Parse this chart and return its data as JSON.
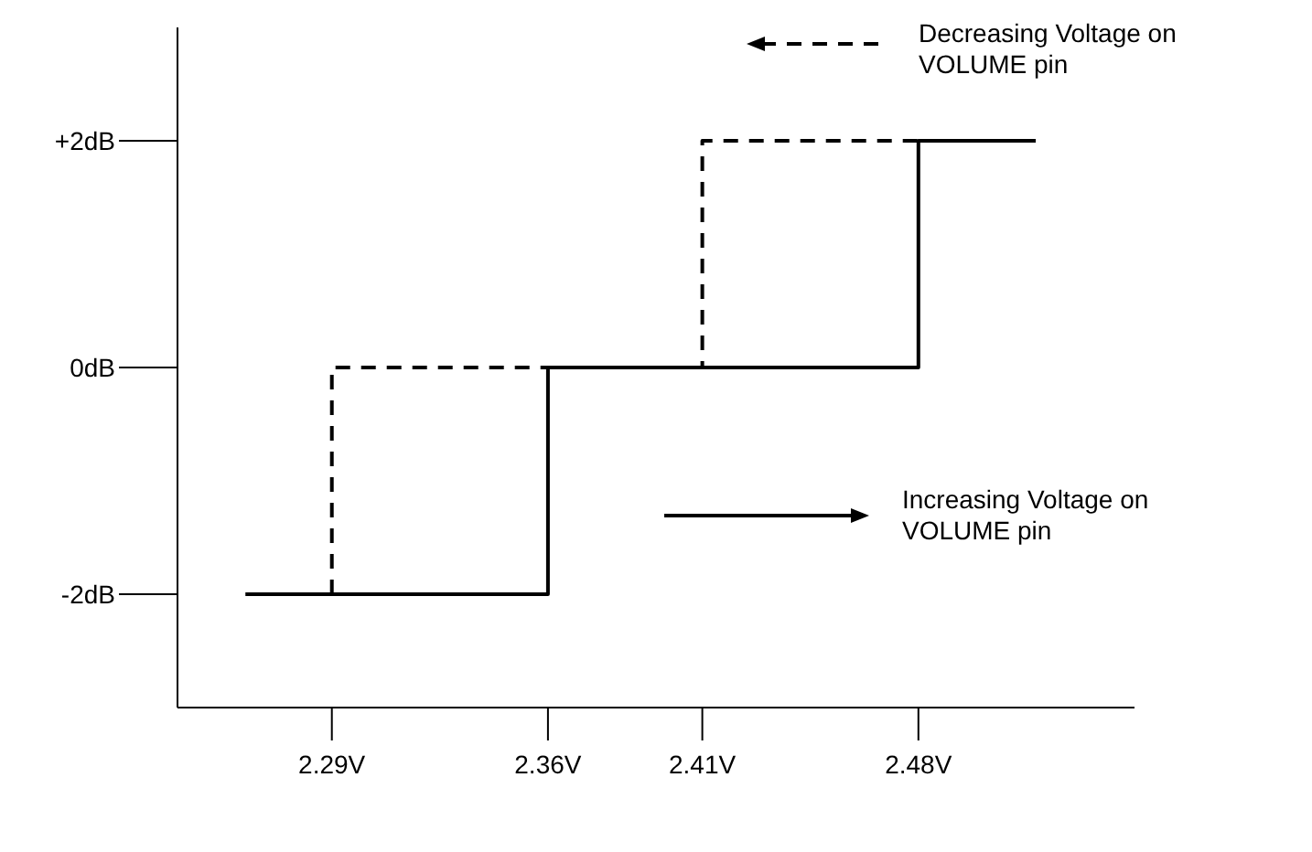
{
  "chart_data": {
    "type": "step",
    "legend": "top right",
    "xlim": [
      2.24,
      2.55
    ],
    "ylim": [
      -3,
      3
    ],
    "xticks": [
      {
        "value": 2.29,
        "label": "2.29V"
      },
      {
        "value": 2.36,
        "label": "2.36V"
      },
      {
        "value": 2.41,
        "label": "2.41V"
      },
      {
        "value": 2.48,
        "label": "2.48V"
      }
    ],
    "yticks": [
      {
        "value": -2,
        "label": "-2dB"
      },
      {
        "value": 0,
        "label": "0dB"
      },
      {
        "value": 2,
        "label": "+2dB"
      }
    ],
    "series": [
      {
        "name": "Decreasing Voltage on VOLUME pin",
        "color": "#000000",
        "line_style": "dashed",
        "x": [
          2.29,
          2.29,
          2.41,
          2.518
        ],
        "values": [
          -2,
          0,
          2,
          2
        ]
      },
      {
        "name": "Increasing Voltage on VOLUME pin",
        "color": "#000000",
        "line_style": "solid",
        "x": [
          2.262,
          2.36,
          2.48,
          2.518
        ],
        "values": [
          -2,
          0,
          2,
          2
        ]
      }
    ]
  }
}
